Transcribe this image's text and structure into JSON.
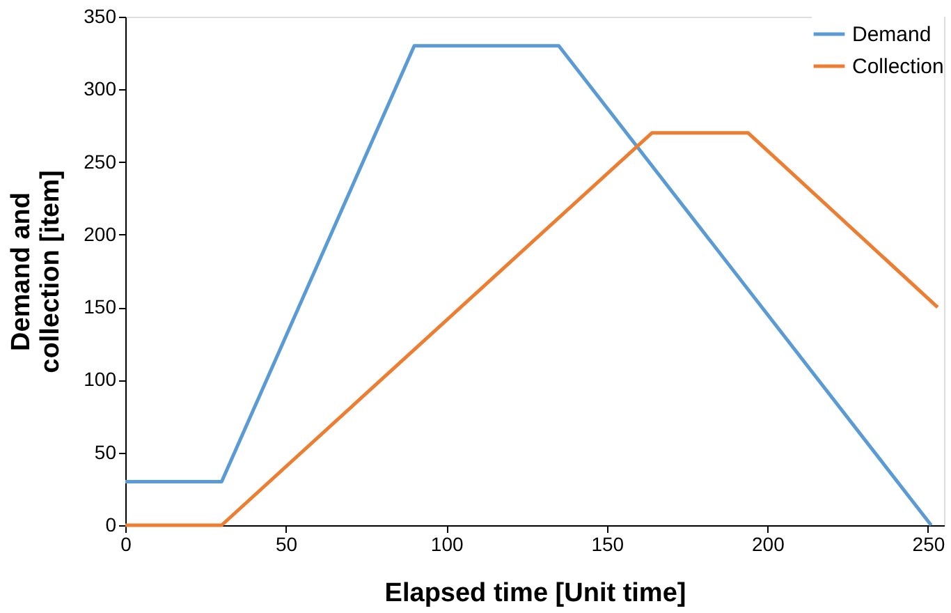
{
  "chart_data": {
    "type": "line",
    "xlabel": "Elapsed time [Unit time]",
    "ylabel": "Demand and collection [item]",
    "xlim": [
      0,
      255
    ],
    "xticks": [
      0,
      50,
      100,
      150,
      200,
      250
    ],
    "ylim": [
      0,
      350
    ],
    "yticks": [
      0,
      50,
      100,
      150,
      200,
      250,
      300,
      350
    ],
    "grid": false,
    "legend": "top right",
    "marker": "none",
    "line_style": "solid",
    "series": [
      {
        "name": "Demand",
        "color": "#5b9bd5",
        "x": [
          0,
          30,
          90,
          135,
          251
        ],
        "values": [
          30,
          30,
          330,
          330,
          0
        ]
      },
      {
        "name": "Collection",
        "color": "#ed7d31",
        "x": [
          0,
          30,
          164,
          194,
          253
        ],
        "values": [
          0,
          0,
          270,
          270,
          150
        ]
      }
    ]
  }
}
